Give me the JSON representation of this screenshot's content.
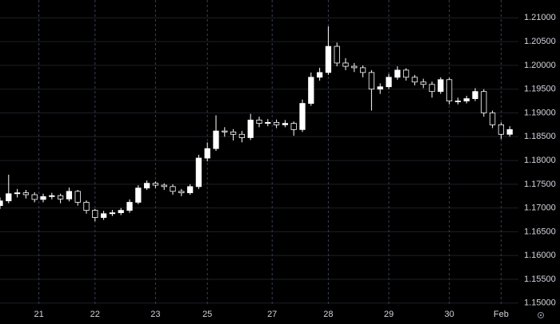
{
  "chart_data": {
    "type": "candlestick",
    "x": [
      0,
      2,
      4,
      6,
      8,
      10,
      12,
      14,
      16,
      18,
      20,
      22,
      24,
      26,
      28,
      30,
      32,
      34,
      36,
      38,
      40,
      42,
      44,
      46,
      48,
      50,
      52,
      54,
      56,
      58,
      60,
      62,
      64,
      66,
      68,
      70,
      72,
      74,
      76,
      78,
      80,
      82,
      84,
      86,
      88,
      90,
      92,
      94,
      96,
      98,
      100,
      102,
      104,
      106,
      108,
      110,
      112,
      114,
      116,
      118
    ],
    "open": [
      1.1705,
      1.1715,
      1.173,
      1.1732,
      1.1728,
      1.1718,
      1.1724,
      1.1726,
      1.1719,
      1.1735,
      1.1712,
      1.1695,
      1.168,
      1.1688,
      1.169,
      1.1695,
      1.1712,
      1.1742,
      1.1752,
      1.1748,
      1.1745,
      1.1735,
      1.1732,
      1.1745,
      1.1805,
      1.1825,
      1.1862,
      1.186,
      1.1855,
      1.1848,
      1.1885,
      1.1878,
      1.188,
      1.1875,
      1.1878,
      1.1865,
      1.192,
      1.1975,
      1.1985,
      1.204,
      1.2005,
      1.1998,
      1.1995,
      1.1985,
      1.195,
      1.1955,
      1.1975,
      1.199,
      1.1975,
      1.1965,
      1.196,
      1.1945,
      1.197,
      1.1925,
      1.1925,
      1.193,
      1.1945,
      1.19,
      1.1875,
      1.1855
    ],
    "high": [
      1.1722,
      1.177,
      1.174,
      1.1738,
      1.1733,
      1.173,
      1.1732,
      1.173,
      1.1743,
      1.1738,
      1.1716,
      1.1698,
      1.1694,
      1.1696,
      1.17,
      1.1718,
      1.1748,
      1.1758,
      1.1756,
      1.1752,
      1.175,
      1.174,
      1.175,
      1.1812,
      1.1838,
      1.1895,
      1.187,
      1.1866,
      1.1862,
      1.1898,
      1.1892,
      1.1887,
      1.1886,
      1.1885,
      1.1882,
      1.1928,
      1.1985,
      1.1995,
      1.2082,
      1.2048,
      1.2015,
      1.2005,
      1.2,
      1.199,
      1.1962,
      1.1982,
      1.1998,
      1.1994,
      1.198,
      1.1972,
      1.1966,
      1.1975,
      1.1974,
      1.1932,
      1.1936,
      1.1952,
      1.195,
      1.1905,
      1.188,
      1.1872
    ],
    "low": [
      1.1698,
      1.171,
      1.1722,
      1.172,
      1.1712,
      1.1712,
      1.1718,
      1.171,
      1.1714,
      1.1705,
      1.1688,
      1.1672,
      1.1675,
      1.1683,
      1.1685,
      1.169,
      1.1708,
      1.1738,
      1.1742,
      1.1738,
      1.1728,
      1.1725,
      1.1728,
      1.174,
      1.1798,
      1.182,
      1.185,
      1.1842,
      1.1838,
      1.1843,
      1.187,
      1.1872,
      1.1868,
      1.187,
      1.1852,
      1.186,
      1.1915,
      1.1968,
      1.198,
      1.1998,
      1.199,
      1.1986,
      1.1975,
      1.1905,
      1.194,
      1.195,
      1.197,
      1.1968,
      1.1958,
      1.1952,
      1.1932,
      1.194,
      1.1918,
      1.1918,
      1.192,
      1.1925,
      1.1892,
      1.1868,
      1.1845,
      1.185
    ],
    "close": [
      1.1715,
      1.173,
      1.1732,
      1.1728,
      1.1718,
      1.1724,
      1.1726,
      1.1719,
      1.1735,
      1.1712,
      1.1695,
      1.168,
      1.1688,
      1.169,
      1.1695,
      1.1712,
      1.1742,
      1.1752,
      1.1748,
      1.1745,
      1.1735,
      1.1732,
      1.1745,
      1.1805,
      1.1825,
      1.1862,
      1.186,
      1.1855,
      1.1848,
      1.1885,
      1.1878,
      1.188,
      1.1875,
      1.1878,
      1.1865,
      1.192,
      1.1975,
      1.1985,
      1.204,
      1.2005,
      1.1998,
      1.1995,
      1.1985,
      1.195,
      1.1955,
      1.1975,
      1.199,
      1.1975,
      1.1965,
      1.196,
      1.1945,
      1.197,
      1.1925,
      1.1925,
      1.193,
      1.1945,
      1.19,
      1.1875,
      1.1855,
      1.1865
    ],
    "up_color": "#ffffff",
    "down_color": "#000000",
    "wick_color": "#ffffff",
    "xlim": [
      0,
      120
    ],
    "xticks": [
      {
        "value": 9,
        "label": "21"
      },
      {
        "value": 22,
        "label": "22"
      },
      {
        "value": 36,
        "label": "23"
      },
      {
        "value": 48,
        "label": "25"
      },
      {
        "value": 63,
        "label": "27"
      },
      {
        "value": 76,
        "label": "28"
      },
      {
        "value": 90,
        "label": "29"
      },
      {
        "value": 104,
        "label": "30"
      },
      {
        "value": 116,
        "label": "Feb"
      }
    ],
    "ylim": [
      1.1456,
      1.21375
    ],
    "yticks": [
      {
        "value": 1.15,
        "label": "1.15000"
      },
      {
        "value": 1.155,
        "label": "1.15500"
      },
      {
        "value": 1.16,
        "label": "1.16000"
      },
      {
        "value": 1.165,
        "label": "1.16500"
      },
      {
        "value": 1.17,
        "label": "1.17000"
      },
      {
        "value": 1.175,
        "label": "1.17500"
      },
      {
        "value": 1.18,
        "label": "1.18000"
      },
      {
        "value": 1.185,
        "label": "1.18500"
      },
      {
        "value": 1.19,
        "label": "1.19000"
      },
      {
        "value": 1.195,
        "label": "1.19500"
      },
      {
        "value": 1.2,
        "label": "1.20000"
      },
      {
        "value": 1.205,
        "label": "1.20500"
      },
      {
        "value": 1.21,
        "label": "1.21000"
      }
    ],
    "grid": true
  }
}
